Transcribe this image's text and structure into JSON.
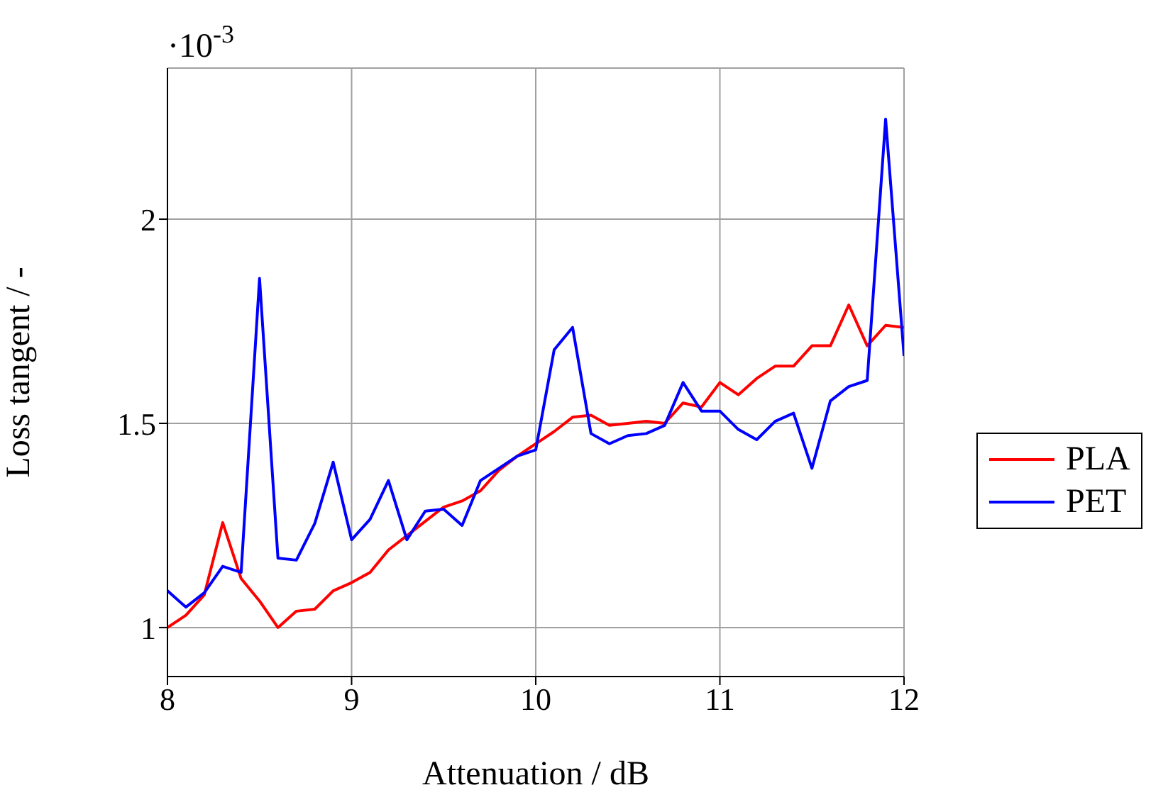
{
  "chart_data": {
    "type": "line",
    "xlabel": "Attenuation / dB",
    "ylabel": "Loss tangent / -",
    "annotations": [
      "·10$^{-3}$"
    ],
    "x": [
      8,
      8.1,
      8.2,
      8.3,
      8.4,
      8.5,
      8.6,
      8.7,
      8.8,
      8.9,
      9,
      9.1,
      9.2,
      9.3,
      9.4,
      9.5,
      9.6,
      9.7,
      9.8,
      9.9,
      10,
      10.1,
      10.2,
      10.3,
      10.4,
      10.5,
      10.6,
      10.7,
      10.8,
      10.9,
      11,
      11.1,
      11.2,
      11.3,
      11.4,
      11.5,
      11.6,
      11.7,
      11.8,
      11.9,
      12
    ],
    "series": [
      {
        "name": "PLA",
        "color": "#ff0000",
        "values": [
          1.0,
          1.03,
          1.08,
          1.257,
          1.12,
          1.065,
          1.0,
          1.04,
          1.045,
          1.09,
          1.11,
          1.135,
          1.19,
          1.225,
          1.26,
          1.295,
          1.31,
          1.335,
          1.385,
          1.42,
          1.45,
          1.48,
          1.515,
          1.52,
          1.495,
          1.5,
          1.505,
          1.5,
          1.55,
          1.54,
          1.6,
          1.57,
          1.61,
          1.64,
          1.64,
          1.69,
          1.69,
          1.79,
          1.69,
          1.74,
          1.735
        ]
      },
      {
        "name": "PET",
        "color": "#0000ff",
        "values": [
          1.09,
          1.05,
          1.085,
          1.15,
          1.135,
          1.855,
          1.17,
          1.165,
          1.255,
          1.405,
          1.215,
          1.265,
          1.36,
          1.215,
          1.285,
          1.29,
          1.25,
          1.36,
          1.39,
          1.42,
          1.435,
          1.68,
          1.735,
          1.475,
          1.45,
          1.47,
          1.475,
          1.495,
          1.6,
          1.53,
          1.53,
          1.485,
          1.46,
          1.505,
          1.525,
          1.39,
          1.555,
          1.59,
          1.605,
          2.245,
          1.665
        ]
      }
    ],
    "xlim": [
      8,
      12
    ],
    "xticks": [
      8,
      9,
      10,
      11,
      12
    ],
    "ylim": [
      0.88,
      2.37
    ],
    "yticks": [
      1,
      1.5,
      2
    ],
    "grid": true,
    "legend": "right",
    "marker": "none",
    "line_style": "solid"
  }
}
